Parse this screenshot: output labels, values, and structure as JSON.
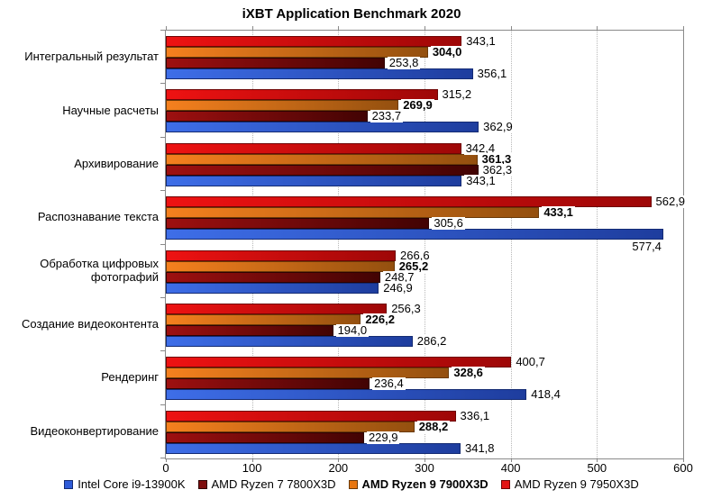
{
  "chart_data": {
    "type": "bar",
    "orientation": "horizontal",
    "title": "iXBT Application Benchmark 2020",
    "xlabel": "",
    "ylabel": "",
    "xlim": [
      0,
      600
    ],
    "xticks": [
      0,
      100,
      200,
      300,
      400,
      500,
      600
    ],
    "grid": "vertical-dotted",
    "legend_position": "bottom",
    "bar_draw_order_within_group": "reversed-legend-order-top-to-bottom",
    "categories": [
      "Интегральный результат",
      "Научные расчеты",
      "Архивирование",
      "Распознавание текста",
      "Обработка цифровых фотографий",
      "Создание видеоконтента",
      "Рендеринг",
      "Видеоконвертирование"
    ],
    "series": [
      {
        "name": "Intel Core i9-13900K",
        "bold": false,
        "color_start": "#3e6ee8",
        "color_end": "#1e3d9e",
        "color_border": "#142b73",
        "legend_color": "#2e5bd8",
        "values": [
          356.1,
          362.9,
          343.1,
          577.4,
          246.9,
          286.2,
          418.4,
          341.8
        ],
        "labels": [
          "356,1",
          "362,9",
          "343,1",
          "577,4",
          "246,9",
          "286,2",
          "418,4",
          "341,8"
        ]
      },
      {
        "name": "AMD Ryzen 7 7800X3D",
        "bold": false,
        "color_start": "#9e1010",
        "color_end": "#420303",
        "color_border": "#2e0202",
        "legend_color": "#7e0e0e",
        "values": [
          253.8,
          233.7,
          362.3,
          305.6,
          248.7,
          194.0,
          236.4,
          229.9
        ],
        "labels": [
          "253,8",
          "233,7",
          "362,3",
          "305,6",
          "248,7",
          "194,0",
          "236,4",
          "229,9"
        ]
      },
      {
        "name": "AMD Ryzen 9 7900X3D",
        "bold": true,
        "color_start": "#f5801e",
        "color_end": "#94500f",
        "color_border": "#6b3a08",
        "legend_color": "#e8760f",
        "values": [
          304.0,
          269.9,
          361.3,
          433.1,
          265.2,
          226.2,
          328.6,
          288.2
        ],
        "labels": [
          "304,0",
          "269,9",
          "361,3",
          "433,1",
          "265,2",
          "226,2",
          "328,6",
          "288,2"
        ]
      },
      {
        "name": "AMD Ryzen 9 7950X3D",
        "bold": false,
        "color_start": "#ee1212",
        "color_end": "#9e0707",
        "color_border": "#6e0404",
        "legend_color": "#e31414",
        "values": [
          343.1,
          315.2,
          342.4,
          562.9,
          266.6,
          256.3,
          400.7,
          336.1
        ],
        "labels": [
          "343,1",
          "315,2",
          "342,4",
          "562,9",
          "266,6",
          "256,3",
          "400,7",
          "336,1"
        ]
      }
    ]
  }
}
